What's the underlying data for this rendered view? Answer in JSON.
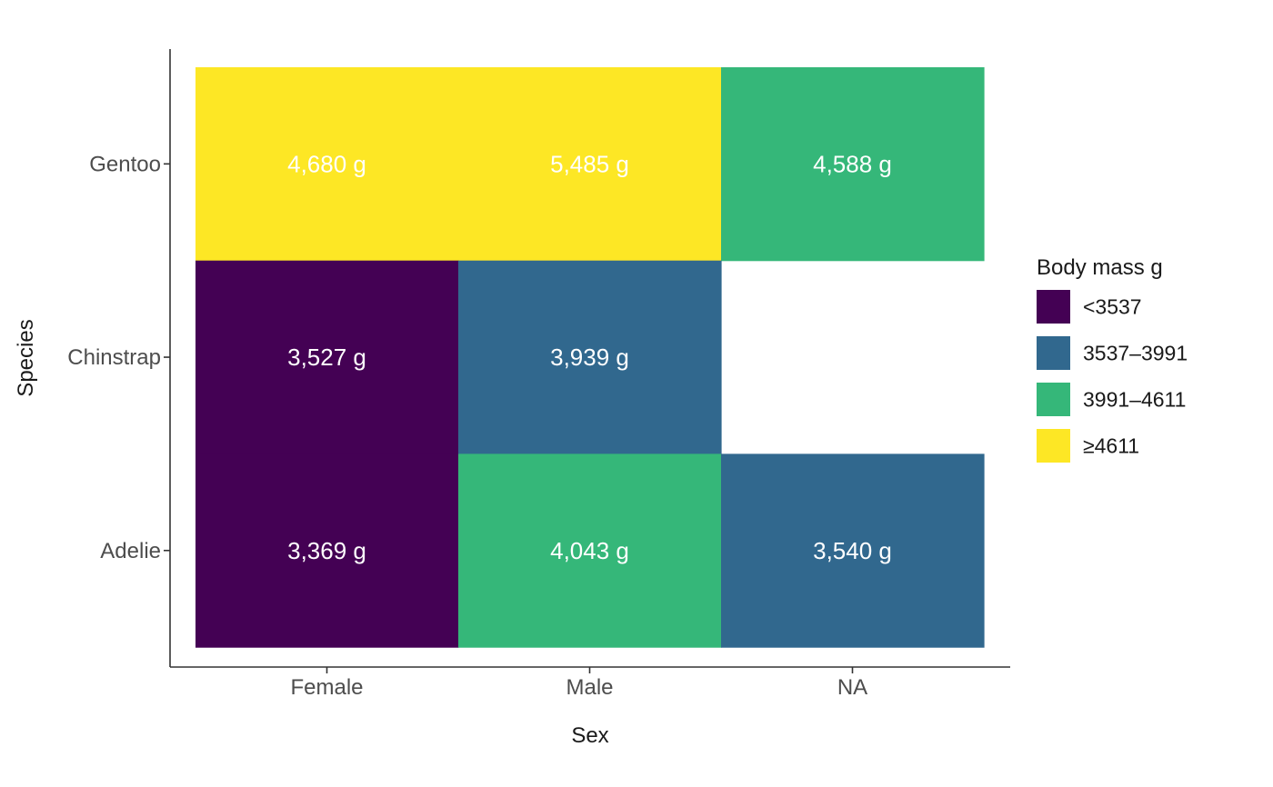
{
  "chart_data": {
    "type": "heatmap",
    "x_categories": [
      "Female",
      "Male",
      "NA"
    ],
    "y_categories": [
      "Adelie",
      "Chinstrap",
      "Gentoo"
    ],
    "xlabel": "Sex",
    "ylabel": "Species",
    "value_unit": "g",
    "cells": [
      {
        "x": "Female",
        "y": "Gentoo",
        "value": 4680,
        "label": "4,680 g",
        "bin": 3
      },
      {
        "x": "Male",
        "y": "Gentoo",
        "value": 5485,
        "label": "5,485 g",
        "bin": 3
      },
      {
        "x": "NA",
        "y": "Gentoo",
        "value": 4588,
        "label": "4,588 g",
        "bin": 2
      },
      {
        "x": "Female",
        "y": "Chinstrap",
        "value": 3527,
        "label": "3,527 g",
        "bin": 0
      },
      {
        "x": "Male",
        "y": "Chinstrap",
        "value": 3939,
        "label": "3,939 g",
        "bin": 1
      },
      {
        "x": "Female",
        "y": "Adelie",
        "value": 3369,
        "label": "3,369 g",
        "bin": 0
      },
      {
        "x": "Male",
        "y": "Adelie",
        "value": 4043,
        "label": "4,043 g",
        "bin": 2
      },
      {
        "x": "NA",
        "y": "Adelie",
        "value": 3540,
        "label": "3,540 g",
        "bin": 1
      }
    ],
    "legend": {
      "title": "Body mass g",
      "position": "right",
      "entries": [
        {
          "label": "<3537",
          "color": "#440154"
        },
        {
          "label": "3537–3991",
          "color": "#31688e"
        },
        {
          "label": "3991–4611",
          "color": "#35b779"
        },
        {
          "label": "≥4611",
          "color": "#fde725"
        }
      ]
    },
    "grid": false
  }
}
